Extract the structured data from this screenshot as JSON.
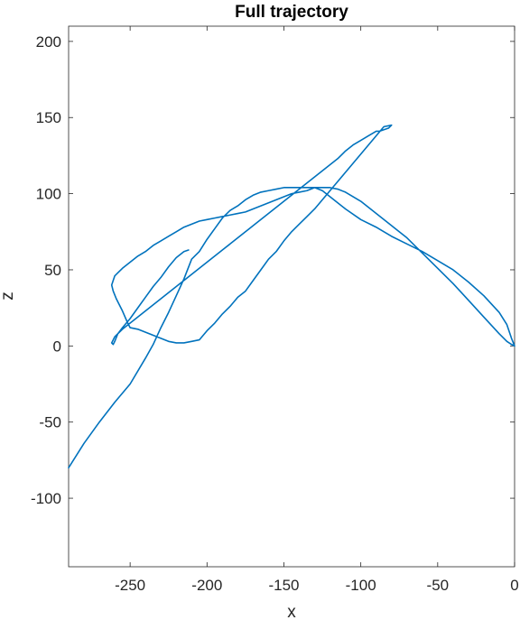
{
  "chart_data": {
    "type": "line",
    "title": "Full trajectory",
    "xlabel": "x",
    "ylabel": "z",
    "xlim": [
      -290,
      0
    ],
    "ylim": [
      -145,
      210
    ],
    "xticks": [
      -250,
      -200,
      -150,
      -100,
      -50,
      0
    ],
    "yticks": [
      -100,
      -50,
      0,
      50,
      100,
      150,
      200
    ],
    "grid": false,
    "series": [
      {
        "color": "#0072BD",
        "x": [
          -290,
          -280,
          -270,
          -260,
          -250,
          -240,
          -235,
          -230,
          -225,
          -220,
          -215,
          -210,
          -205,
          -200,
          -195,
          -190,
          -185,
          -180,
          -175,
          -170,
          -165,
          -160,
          -155,
          -150,
          -145,
          -140,
          -135,
          -130,
          -125,
          -120,
          -115,
          -110,
          -100,
          -90,
          -80,
          -70,
          -60,
          -50,
          -40,
          -30,
          -20,
          -10,
          -5,
          -2,
          0,
          -2,
          -5,
          -10,
          -20,
          -30,
          -40,
          -50,
          -60,
          -70,
          -80,
          -90,
          -100,
          -110,
          -115,
          -120,
          -125,
          -130,
          -135,
          -140,
          -145,
          -150,
          -155,
          -160,
          -165,
          -170,
          -175,
          -180,
          -185,
          -190,
          -195,
          -200,
          -205,
          -210,
          -215,
          -220,
          -225,
          -230,
          -235,
          -240,
          -245,
          -250,
          -255,
          -258,
          -260,
          -261,
          -262,
          -261,
          -259,
          -257,
          -255,
          -252,
          -250,
          -245,
          -240,
          -235,
          -230,
          -225,
          -220,
          -215,
          -210,
          -205,
          -200,
          -195,
          -190,
          -185,
          -180,
          -175,
          -170,
          -165,
          -160,
          -155,
          -150,
          -145,
          -140,
          -135,
          -130,
          -125,
          -120,
          -115,
          -110,
          -105,
          -100,
          -95,
          -90,
          -85,
          -80,
          -82,
          -85,
          -88,
          -90,
          -95,
          -100,
          -105,
          -110,
          -115,
          -120,
          -125,
          -130,
          -135,
          -140,
          -145,
          -150,
          -155,
          -160,
          -165,
          -170,
          -175,
          -180,
          -185,
          -190,
          -195,
          -200,
          -205,
          -210,
          -215,
          -220,
          -225,
          -230,
          -235,
          -240,
          -245,
          -250,
          -255,
          -258,
          -260,
          -261,
          -262,
          -261,
          -260,
          -258,
          -255,
          -250,
          -245,
          -240,
          -235,
          -230,
          -225,
          -220,
          -215,
          -212
        ],
        "y": [
          -80,
          -64,
          -50,
          -37,
          -25,
          -8,
          1,
          12,
          22,
          33,
          44,
          57,
          62,
          70,
          77,
          84,
          89,
          92,
          96,
          99,
          101,
          102,
          103,
          104,
          104,
          104,
          104,
          104,
          104,
          104,
          103,
          101,
          95,
          87,
          79,
          71,
          61,
          51,
          41,
          30,
          19,
          8,
          3,
          1,
          0,
          5,
          14,
          22,
          33,
          42,
          50,
          56,
          62,
          67,
          72,
          78,
          83,
          90,
          94,
          98,
          102,
          104,
          102,
          101,
          100,
          98,
          96,
          94,
          92,
          90,
          88,
          87,
          86,
          85,
          84,
          83,
          82,
          80,
          78,
          75,
          72,
          69,
          66,
          62,
          59,
          55,
          51,
          48,
          46,
          43,
          40,
          36,
          31,
          27,
          23,
          16,
          12,
          11,
          9,
          7,
          5,
          3,
          2,
          2,
          3,
          4,
          10,
          15,
          21,
          26,
          32,
          36,
          43,
          50,
          57,
          62,
          69,
          75,
          80,
          85,
          90,
          96,
          102,
          108,
          114,
          120,
          126,
          132,
          138,
          144,
          145,
          143,
          142,
          141,
          141,
          138,
          135,
          132,
          128,
          123,
          119,
          115,
          111,
          107,
          103,
          99,
          95,
          91,
          87,
          83,
          79,
          75,
          71,
          67,
          63,
          59,
          55,
          51,
          47,
          43,
          39,
          35,
          31,
          27,
          23,
          19,
          15,
          11,
          8,
          6,
          4,
          2,
          1,
          3,
          8,
          12,
          18,
          25,
          32,
          39,
          45,
          52,
          58,
          62,
          63
        ]
      }
    ]
  }
}
